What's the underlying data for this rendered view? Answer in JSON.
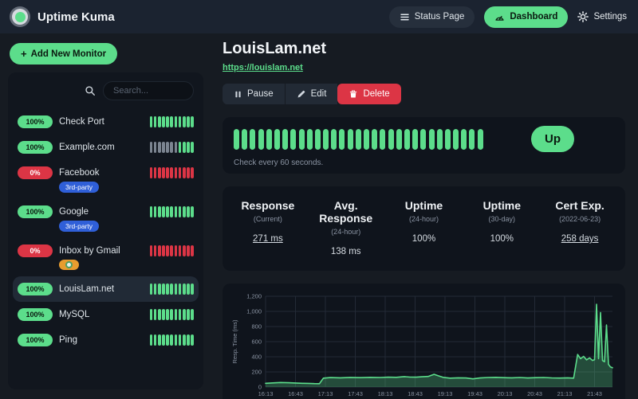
{
  "navbar": {
    "brand": "Uptime Kuma",
    "status_page_label": "Status Page",
    "dashboard_label": "Dashboard",
    "settings_label": "Settings"
  },
  "colors": {
    "accent_green": "#5cdd8b",
    "danger_red": "#dc3545",
    "pending_gray": "#7b8490",
    "tag_blue": "#2f5fd8",
    "tag_orange": "#e79c2f"
  },
  "sidebar": {
    "add_button_label": "Add New Monitor",
    "search_placeholder": "Search...",
    "monitors": [
      {
        "name": "Check Port",
        "uptime": "100%",
        "status": "up",
        "selected": false,
        "tags": [],
        "beats": [
          "up",
          "up",
          "up",
          "up",
          "up",
          "up",
          "up",
          "up",
          "up",
          "up",
          "up"
        ]
      },
      {
        "name": "Example.com",
        "uptime": "100%",
        "status": "up",
        "selected": false,
        "tags": [],
        "beats": [
          "empty",
          "empty",
          "empty",
          "empty",
          "empty",
          "empty",
          "empty",
          "up",
          "up",
          "up",
          "up"
        ]
      },
      {
        "name": "Facebook",
        "uptime": "0%",
        "status": "down",
        "selected": false,
        "tags": [
          {
            "label": "3rd-party",
            "color": "#2f5fd8",
            "icon": ""
          }
        ],
        "beats": [
          "down",
          "down",
          "down",
          "down",
          "down",
          "down",
          "down",
          "down",
          "down",
          "down",
          "down"
        ]
      },
      {
        "name": "Google",
        "uptime": "100%",
        "status": "up",
        "selected": false,
        "tags": [
          {
            "label": "3rd-party",
            "color": "#2f5fd8",
            "icon": ""
          }
        ],
        "beats": [
          "up",
          "up",
          "up",
          "up",
          "up",
          "up",
          "up",
          "up",
          "up",
          "up",
          "up"
        ]
      },
      {
        "name": "Inbox by Gmail",
        "uptime": "0%",
        "status": "down",
        "selected": false,
        "tags": [
          {
            "label": "",
            "color": "#e79c2f",
            "icon": "badge-icon"
          }
        ],
        "beats": [
          "down",
          "down",
          "down",
          "down",
          "down",
          "down",
          "down",
          "down",
          "down",
          "down",
          "down"
        ]
      },
      {
        "name": "LouisLam.net",
        "uptime": "100%",
        "status": "up",
        "selected": true,
        "tags": [],
        "beats": [
          "up",
          "up",
          "up",
          "up",
          "up",
          "up",
          "up",
          "up",
          "up",
          "up",
          "up"
        ]
      },
      {
        "name": "MySQL",
        "uptime": "100%",
        "status": "up",
        "selected": false,
        "tags": [],
        "beats": [
          "up",
          "up",
          "up",
          "up",
          "up",
          "up",
          "up",
          "up",
          "up",
          "up",
          "up"
        ]
      },
      {
        "name": "Ping",
        "uptime": "100%",
        "status": "up",
        "selected": false,
        "tags": [],
        "beats": [
          "up",
          "up",
          "up",
          "up",
          "up",
          "up",
          "up",
          "up",
          "up",
          "up",
          "up"
        ]
      }
    ]
  },
  "monitor": {
    "title": "LouisLam.net",
    "url": "https://louislam.net",
    "pause_label": "Pause",
    "edit_label": "Edit",
    "delete_label": "Delete",
    "status_badge": "Up",
    "check_interval_text": "Check every 60 seconds.",
    "heartbeat": {
      "count": 31,
      "status": "up"
    },
    "stats": [
      {
        "label": "Response",
        "sub": "(Current)",
        "value": "271 ms",
        "link": true
      },
      {
        "label": "Avg. Response",
        "sub": "(24-hour)",
        "value": "138 ms",
        "link": false
      },
      {
        "label": "Uptime",
        "sub": "(24-hour)",
        "value": "100%",
        "link": false
      },
      {
        "label": "Uptime",
        "sub": "(30-day)",
        "value": "100%",
        "link": false
      },
      {
        "label": "Cert Exp.",
        "sub": "(2022-06-23)",
        "value": "258 days",
        "link": true
      }
    ]
  },
  "chart_data": {
    "type": "area",
    "title": "",
    "xlabel": "",
    "ylabel": "Resp. Time (ms)",
    "ylim": [
      0,
      1200
    ],
    "yticks": [
      0,
      200,
      400,
      600,
      800,
      1000,
      1200
    ],
    "ytick_labels": [
      "0",
      "200",
      "400",
      "600",
      "800",
      "1,000",
      "1,200"
    ],
    "x_range_minutes": [
      973,
      1321
    ],
    "xticks_minutes": [
      973,
      1003,
      1033,
      1063,
      1093,
      1123,
      1153,
      1183,
      1213,
      1243,
      1273,
      1303
    ],
    "xtick_labels": [
      "16:13",
      "16:43",
      "17:13",
      "17:43",
      "18:13",
      "18:43",
      "19:13",
      "19:43",
      "20:13",
      "20:43",
      "21:13",
      "21:43"
    ],
    "grid": true,
    "legend": "none",
    "line_color": "#5cdd8b",
    "fill_color": "rgba(92,221,139,0.28)",
    "series": [
      {
        "name": "resp_time_ms",
        "x": [
          973,
          980,
          988,
          996,
          1003,
          1010,
          1016,
          1022,
          1027,
          1031,
          1038,
          1048,
          1058,
          1068,
          1078,
          1088,
          1096,
          1104,
          1112,
          1118,
          1124,
          1130,
          1136,
          1142,
          1146,
          1151,
          1158,
          1166,
          1174,
          1181,
          1188,
          1196,
          1204,
          1212,
          1220,
          1228,
          1236,
          1244,
          1252,
          1260,
          1268,
          1276,
          1282,
          1286,
          1289,
          1292,
          1295,
          1298,
          1301,
          1303,
          1305,
          1307,
          1309,
          1311,
          1313,
          1315,
          1317,
          1319,
          1321
        ],
        "y": [
          50,
          55,
          60,
          57,
          54,
          50,
          48,
          45,
          44,
          118,
          125,
          122,
          127,
          124,
          128,
          126,
          130,
          128,
          138,
          132,
          130,
          136,
          140,
          168,
          150,
          128,
          118,
          122,
          120,
          108,
          120,
          126,
          128,
          124,
          122,
          126,
          120,
          124,
          126,
          121,
          119,
          122,
          118,
          430,
          375,
          405,
          360,
          385,
          350,
          362,
          1095,
          375,
          985,
          350,
          335,
          820,
          300,
          265,
          255
        ]
      }
    ]
  }
}
